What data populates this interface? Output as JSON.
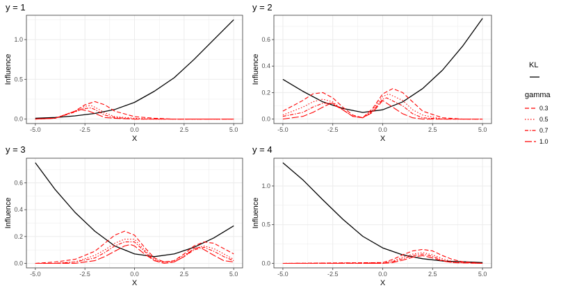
{
  "colors": {
    "kl": "#000000",
    "gamma": "#ff0000",
    "grid": "#ebebeb",
    "border": "#333333"
  },
  "legend": {
    "kl_title": "KL",
    "gamma_title": "gamma",
    "gamma_entries": [
      "0.3",
      "0.5",
      "0.7",
      "1.0"
    ],
    "placement": "right"
  },
  "chart_data": [
    {
      "type": "line",
      "title": "y = 1",
      "xlabel": "X",
      "ylabel": "Influence",
      "xlim": [
        -5,
        5
      ],
      "ylim": [
        0,
        1.25
      ],
      "xticks": [
        -5,
        -2.5,
        0,
        2.5,
        5
      ],
      "xtick_labels": [
        "-5.0",
        "-2.5",
        "0.0",
        "2.5",
        "5.0"
      ],
      "yticks": [
        0,
        0.5,
        1
      ],
      "ytick_labels": [
        "0.0",
        "0.5",
        "1.0"
      ],
      "series": [
        {
          "name": "KL",
          "x": [
            -5,
            -4,
            -3,
            -2,
            -1,
            0,
            1,
            2,
            3,
            4,
            5
          ],
          "y": [
            0.01,
            0.02,
            0.04,
            0.07,
            0.12,
            0.21,
            0.35,
            0.52,
            0.75,
            1.0,
            1.25
          ]
        },
        {
          "name": "0.3",
          "x": [
            -5,
            -4,
            -3,
            -2.5,
            -2,
            -1.5,
            -1,
            0,
            1,
            2,
            5
          ],
          "y": [
            0,
            0.01,
            0.1,
            0.18,
            0.22,
            0.18,
            0.1,
            0.03,
            0.01,
            0,
            0
          ]
        },
        {
          "name": "0.5",
          "x": [
            -5,
            -4,
            -3,
            -2.5,
            -2.2,
            -2,
            -1.5,
            -1,
            0,
            1,
            5
          ],
          "y": [
            0,
            0.01,
            0.1,
            0.16,
            0.17,
            0.15,
            0.08,
            0.03,
            0.01,
            0,
            0
          ]
        },
        {
          "name": "0.7",
          "x": [
            -5,
            -4,
            -3,
            -2.6,
            -2.2,
            -2,
            -1.5,
            -1,
            0,
            5
          ],
          "y": [
            0,
            0.01,
            0.09,
            0.13,
            0.14,
            0.12,
            0.05,
            0.02,
            0,
            0
          ]
        },
        {
          "name": "1.0",
          "x": [
            -5,
            -4,
            -3.2,
            -2.7,
            -2.3,
            -2,
            -1.5,
            -1,
            0,
            5
          ],
          "y": [
            0,
            0.01,
            0.08,
            0.12,
            0.1,
            0.07,
            0.02,
            0.01,
            0,
            0
          ]
        }
      ]
    },
    {
      "type": "line",
      "title": "y = 2",
      "xlabel": "X",
      "ylabel": "Influence",
      "xlim": [
        -5,
        5
      ],
      "ylim": [
        0,
        0.75
      ],
      "xticks": [
        -5,
        -2.5,
        0,
        2.5,
        5
      ],
      "xtick_labels": [
        "-5.0",
        "-2.5",
        "0.0",
        "2.5",
        "5.0"
      ],
      "yticks": [
        0,
        0.2,
        0.4,
        0.6
      ],
      "ytick_labels": [
        "0.0",
        "0.2",
        "0.4",
        "0.6"
      ],
      "series": [
        {
          "name": "KL",
          "x": [
            -5,
            -4,
            -3,
            -2,
            -1,
            0,
            1,
            2,
            3,
            4,
            5
          ],
          "y": [
            0.3,
            0.21,
            0.13,
            0.08,
            0.05,
            0.07,
            0.13,
            0.23,
            0.37,
            0.55,
            0.76
          ]
        },
        {
          "name": "0.3",
          "x": [
            -5,
            -4,
            -3.5,
            -3,
            -2.5,
            -2,
            -1.5,
            -1,
            -0.5,
            0,
            0.5,
            1,
            1.5,
            2,
            3,
            4,
            5
          ],
          "y": [
            0.06,
            0.14,
            0.19,
            0.2,
            0.16,
            0.09,
            0.03,
            0.01,
            0.08,
            0.19,
            0.23,
            0.2,
            0.13,
            0.06,
            0.01,
            0,
            0
          ]
        },
        {
          "name": "0.5",
          "x": [
            -5,
            -4,
            -3.5,
            -3,
            -2.5,
            -2,
            -1.5,
            -1,
            -0.5,
            0,
            0.3,
            1,
            1.5,
            2,
            3,
            5
          ],
          "y": [
            0.03,
            0.09,
            0.13,
            0.15,
            0.13,
            0.07,
            0.02,
            0.01,
            0.07,
            0.17,
            0.19,
            0.14,
            0.07,
            0.03,
            0,
            0
          ]
        },
        {
          "name": "0.7",
          "x": [
            -5,
            -4,
            -3.5,
            -3,
            -2.5,
            -2,
            -1.5,
            -1,
            -0.5,
            0,
            0.2,
            1,
            1.5,
            2,
            3,
            5
          ],
          "y": [
            0.02,
            0.05,
            0.09,
            0.12,
            0.12,
            0.07,
            0.02,
            0.01,
            0.06,
            0.15,
            0.16,
            0.1,
            0.04,
            0.01,
            0,
            0
          ]
        },
        {
          "name": "1.0",
          "x": [
            -5,
            -4,
            -3.5,
            -3,
            -2.6,
            -2,
            -1.5,
            -1,
            -0.5,
            0,
            0.5,
            1,
            1.5,
            2,
            5
          ],
          "y": [
            0,
            0.02,
            0.05,
            0.09,
            0.12,
            0.07,
            0.02,
            0.01,
            0.05,
            0.14,
            0.09,
            0.04,
            0.01,
            0,
            0
          ]
        }
      ]
    },
    {
      "type": "line",
      "title": "y = 3",
      "xlabel": "X",
      "ylabel": "Influence",
      "xlim": [
        -5,
        5
      ],
      "ylim": [
        0,
        0.75
      ],
      "xticks": [
        -5,
        -2.5,
        0,
        2.5,
        5
      ],
      "xtick_labels": [
        "-5.0",
        "-2.5",
        "0.0",
        "2.5",
        "5.0"
      ],
      "yticks": [
        0,
        0.2,
        0.4,
        0.6
      ],
      "ytick_labels": [
        "0.0",
        "0.2",
        "0.4",
        "0.6"
      ],
      "series": [
        {
          "name": "KL",
          "x": [
            -5,
            -4,
            -3,
            -2,
            -1,
            0,
            1,
            2,
            3,
            4,
            5
          ],
          "y": [
            0.75,
            0.55,
            0.38,
            0.24,
            0.13,
            0.07,
            0.05,
            0.07,
            0.12,
            0.19,
            0.28
          ]
        },
        {
          "name": "0.3",
          "x": [
            -5,
            -4,
            -3,
            -2,
            -1.5,
            -1,
            -0.5,
            0,
            0.5,
            1,
            1.5,
            2,
            2.5,
            3,
            3.5,
            4,
            4.5,
            5
          ],
          "y": [
            0,
            0.01,
            0.03,
            0.09,
            0.15,
            0.21,
            0.24,
            0.21,
            0.12,
            0.04,
            0.01,
            0.02,
            0.07,
            0.13,
            0.16,
            0.15,
            0.11,
            0.07
          ]
        },
        {
          "name": "0.5",
          "x": [
            -5,
            -4,
            -3,
            -2,
            -1.5,
            -1,
            -0.5,
            0,
            0.5,
            1,
            1.5,
            2,
            2.5,
            3,
            3.5,
            4,
            4.5,
            5
          ],
          "y": [
            0,
            0,
            0.01,
            0.06,
            0.1,
            0.15,
            0.18,
            0.18,
            0.1,
            0.03,
            0.01,
            0.02,
            0.06,
            0.11,
            0.13,
            0.11,
            0.07,
            0.03
          ]
        },
        {
          "name": "0.7",
          "x": [
            -5,
            -4,
            -3,
            -2,
            -1.5,
            -1,
            -0.5,
            0,
            0.5,
            1,
            1.5,
            2,
            2.5,
            3,
            3.5,
            4,
            4.5,
            5
          ],
          "y": [
            0,
            0,
            0.01,
            0.04,
            0.08,
            0.13,
            0.16,
            0.16,
            0.09,
            0.02,
            0.01,
            0.01,
            0.05,
            0.1,
            0.12,
            0.09,
            0.05,
            0.02
          ]
        },
        {
          "name": "1.0",
          "x": [
            -5,
            -4,
            -3,
            -2,
            -1.5,
            -1,
            -0.5,
            -0.2,
            0,
            0.5,
            1,
            1.5,
            2,
            2.5,
            3,
            3.3,
            4,
            4.5,
            5
          ],
          "y": [
            0,
            0,
            0,
            0.02,
            0.05,
            0.09,
            0.13,
            0.14,
            0.13,
            0.07,
            0.02,
            0,
            0.01,
            0.05,
            0.11,
            0.12,
            0.06,
            0.02,
            0.01
          ]
        }
      ]
    },
    {
      "type": "line",
      "title": "y = 4",
      "xlabel": "X",
      "ylabel": "Influence",
      "xlim": [
        -5,
        5
      ],
      "ylim": [
        0,
        1.3
      ],
      "xticks": [
        -5,
        -2.5,
        0,
        2.5,
        5
      ],
      "xtick_labels": [
        "-5.0",
        "-2.5",
        "0.0",
        "2.5",
        "5.0"
      ],
      "yticks": [
        0,
        0.5,
        1
      ],
      "ytick_labels": [
        "0.0",
        "0.5",
        "1.0"
      ],
      "series": [
        {
          "name": "KL",
          "x": [
            -5,
            -4,
            -3,
            -2,
            -1,
            0,
            1,
            2,
            3,
            4,
            5
          ],
          "y": [
            1.3,
            1.08,
            0.82,
            0.57,
            0.35,
            0.2,
            0.11,
            0.06,
            0.03,
            0.02,
            0.01
          ]
        },
        {
          "name": "0.3",
          "x": [
            -5,
            0,
            0.5,
            1,
            1.5,
            2,
            2.5,
            3,
            3.5,
            4,
            5
          ],
          "y": [
            0,
            0.01,
            0.05,
            0.11,
            0.16,
            0.18,
            0.16,
            0.1,
            0.05,
            0.02,
            0
          ]
        },
        {
          "name": "0.5",
          "x": [
            -5,
            0,
            0.5,
            1,
            1.5,
            2,
            2.5,
            3,
            3.5,
            5
          ],
          "y": [
            0,
            0.01,
            0.03,
            0.08,
            0.12,
            0.14,
            0.11,
            0.06,
            0.02,
            0
          ]
        },
        {
          "name": "0.7",
          "x": [
            -5,
            0,
            0.5,
            1,
            1.5,
            2,
            2.5,
            3,
            3.5,
            5
          ],
          "y": [
            0,
            0,
            0.02,
            0.06,
            0.1,
            0.12,
            0.09,
            0.04,
            0.01,
            0
          ]
        },
        {
          "name": "1.0",
          "x": [
            -5,
            0,
            0.5,
            1,
            1.5,
            2,
            2.5,
            3,
            3.5,
            5
          ],
          "y": [
            0,
            0,
            0.01,
            0.04,
            0.08,
            0.1,
            0.07,
            0.03,
            0.01,
            0
          ]
        }
      ]
    }
  ]
}
